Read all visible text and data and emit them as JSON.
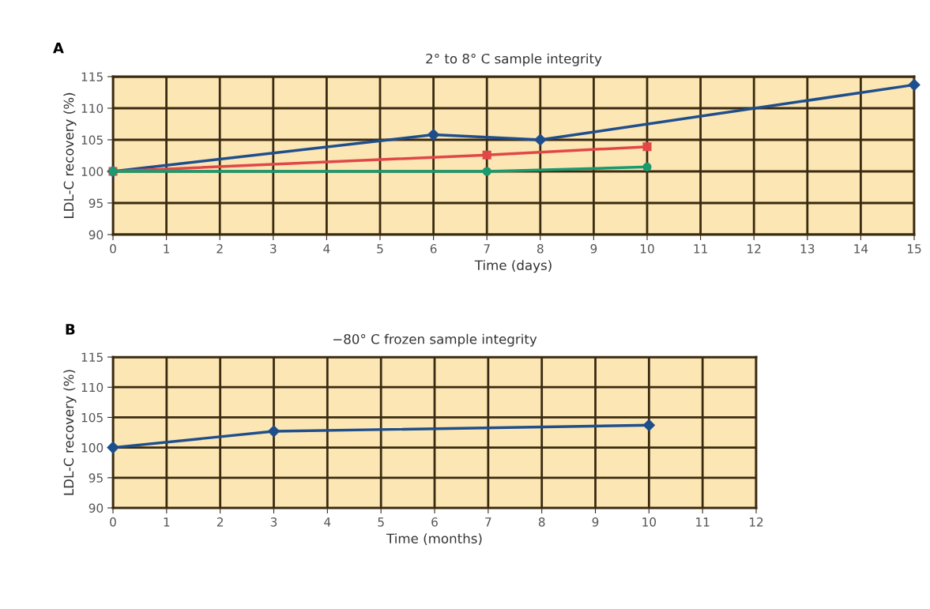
{
  "chart_data": [
    {
      "type": "line",
      "title": "2° to 8° C sample integrity",
      "xlabel": "Time (days)",
      "ylabel": "LDL-C recovery (%)",
      "annotations": [
        "A"
      ],
      "xlim": [
        0,
        15
      ],
      "xticks": [
        0,
        1,
        2,
        3,
        4,
        5,
        6,
        7,
        8,
        9,
        10,
        11,
        12,
        13,
        14,
        15
      ],
      "ylim": [
        90,
        115
      ],
      "yticks": [
        90,
        95,
        100,
        105,
        110,
        115
      ],
      "grid": true,
      "series": [
        {
          "color": "#1f4e8c",
          "marker": "diamond",
          "x": [
            0,
            6,
            8,
            15
          ],
          "values": [
            100,
            105.8,
            105,
            113.7
          ]
        },
        {
          "color": "#e04848",
          "marker": "square",
          "x": [
            0,
            7,
            10
          ],
          "values": [
            100,
            102.6,
            103.9
          ]
        },
        {
          "color": "#1a9a6e",
          "marker": "circle",
          "x": [
            0,
            7,
            10
          ],
          "values": [
            100,
            100,
            100.7
          ]
        }
      ]
    },
    {
      "type": "line",
      "title": "−80° C frozen sample integrity",
      "xlabel": "Time (months)",
      "ylabel": "LDL-C recovery (%)",
      "annotations": [
        "B"
      ],
      "xlim": [
        0,
        12
      ],
      "xticks": [
        0,
        1,
        2,
        3,
        4,
        5,
        6,
        7,
        8,
        9,
        10,
        11,
        12
      ],
      "ylim": [
        90,
        115
      ],
      "yticks": [
        90,
        95,
        100,
        105,
        110,
        115
      ],
      "grid": true,
      "series": [
        {
          "color": "#1f4e8c",
          "marker": "diamond",
          "x": [
            0,
            3,
            10
          ],
          "values": [
            100,
            102.7,
            103.7
          ]
        }
      ]
    }
  ]
}
